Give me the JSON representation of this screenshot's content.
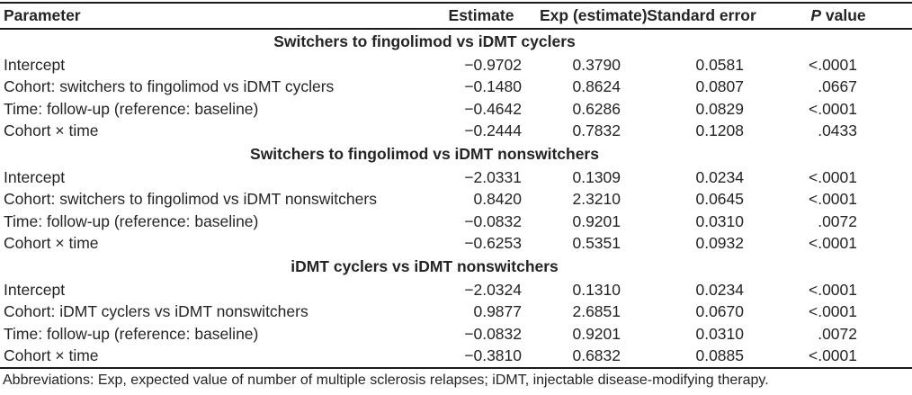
{
  "table": {
    "headers": {
      "parameter": "Parameter",
      "estimate": "Estimate",
      "exp_estimate": "Exp (estimate)",
      "standard_error": "Standard error",
      "p_value_italic": "P",
      "p_value_rest": " value"
    },
    "sections": [
      {
        "header": "Switchers to fingolimod vs iDMT cyclers",
        "rows": [
          {
            "parameter": "Intercept",
            "estimate": "−0.9702",
            "exp": "0.3790",
            "se": "0.0581",
            "p": "<.0001"
          },
          {
            "parameter": "Cohort: switchers to fingolimod vs iDMT cyclers",
            "estimate": "−0.1480",
            "exp": "0.8624",
            "se": "0.0807",
            "p": ".0667"
          },
          {
            "parameter": "Time: follow-up (reference: baseline)",
            "estimate": "−0.4642",
            "exp": "0.6286",
            "se": "0.0829",
            "p": "<.0001"
          },
          {
            "parameter": "Cohort × time",
            "estimate": "−0.2444",
            "exp": "0.7832",
            "se": "0.1208",
            "p": ".0433"
          }
        ]
      },
      {
        "header": "Switchers to fingolimod vs iDMT nonswitchers",
        "rows": [
          {
            "parameter": "Intercept",
            "estimate": "−2.0331",
            "exp": "0.1309",
            "se": "0.0234",
            "p": "<.0001"
          },
          {
            "parameter": "Cohort: switchers to fingolimod vs iDMT nonswitchers",
            "estimate": "0.8420",
            "exp": "2.3210",
            "se": "0.0645",
            "p": "<.0001"
          },
          {
            "parameter": "Time: follow-up (reference: baseline)",
            "estimate": "−0.0832",
            "exp": "0.9201",
            "se": "0.0310",
            "p": ".0072"
          },
          {
            "parameter": "Cohort × time",
            "estimate": "−0.6253",
            "exp": "0.5351",
            "se": "0.0932",
            "p": "<.0001"
          }
        ]
      },
      {
        "header": "iDMT cyclers vs iDMT nonswitchers",
        "rows": [
          {
            "parameter": "Intercept",
            "estimate": "−2.0324",
            "exp": "0.1310",
            "se": "0.0234",
            "p": "<.0001"
          },
          {
            "parameter": "Cohort: iDMT cyclers vs iDMT nonswitchers",
            "estimate": "0.9877",
            "exp": "2.6851",
            "se": "0.0670",
            "p": "<.0001"
          },
          {
            "parameter": "Time: follow-up (reference: baseline)",
            "estimate": "−0.0832",
            "exp": "0.9201",
            "se": "0.0310",
            "p": ".0072"
          },
          {
            "parameter": "Cohort × time",
            "estimate": "−0.3810",
            "exp": "0.6832",
            "se": "0.0885",
            "p": "<.0001"
          }
        ]
      }
    ],
    "footnote": "Abbreviations: Exp, expected value of number of multiple sclerosis relapses; iDMT, injectable disease-modifying therapy."
  }
}
